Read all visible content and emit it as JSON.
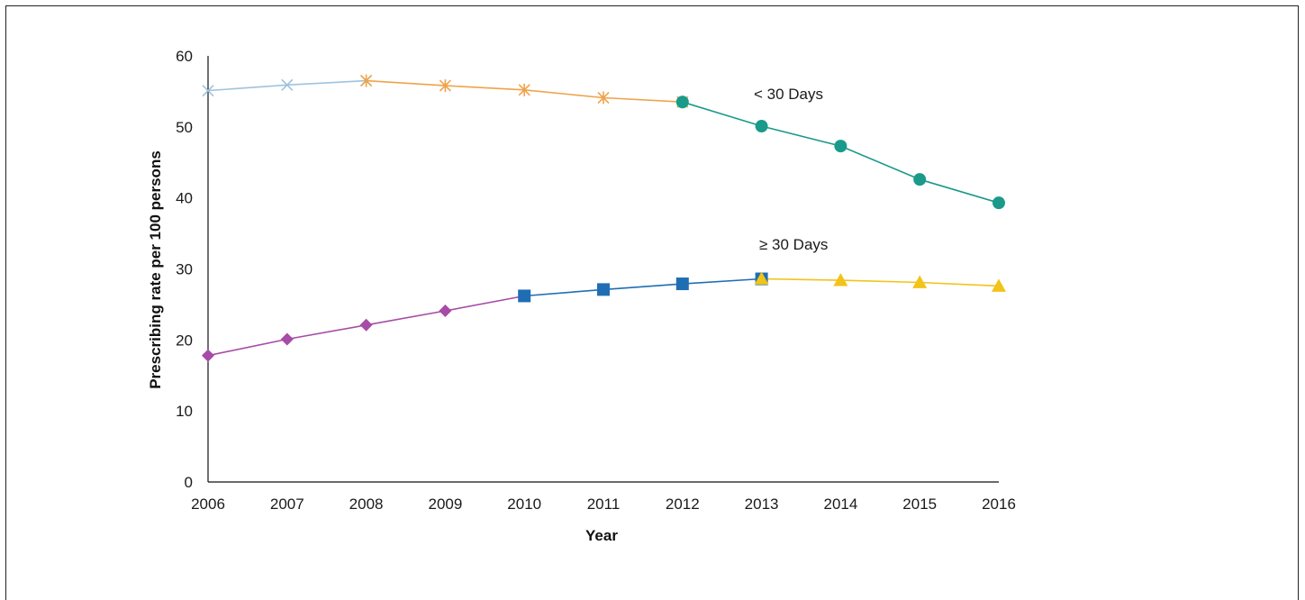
{
  "chart_data": {
    "type": "line",
    "title": "",
    "xlabel": "Year",
    "ylabel": "Prescribing rate per 100 persons",
    "x": [
      2006,
      2007,
      2008,
      2009,
      2010,
      2011,
      2012,
      2013,
      2014,
      2015,
      2016
    ],
    "xlim": [
      2006,
      2016
    ],
    "ylim": [
      0,
      60
    ],
    "yticks": [
      0,
      10,
      20,
      30,
      40,
      50,
      60
    ],
    "grid": false,
    "legend": "none",
    "annotations": [
      {
        "text": "< 30 Days",
        "series_group": "short"
      },
      {
        "text": "≥ 30 Days",
        "series_group": "long"
      }
    ],
    "series": [
      {
        "group": "short",
        "marker": "x",
        "color": "#9fc3dd",
        "x": [
          2006,
          2007,
          2008
        ],
        "y": [
          55.1,
          55.9,
          56.5
        ]
      },
      {
        "group": "short",
        "marker": "asterisk",
        "color": "#f0a24a",
        "x": [
          2008,
          2009,
          2010,
          2011,
          2012
        ],
        "y": [
          56.5,
          55.8,
          55.2,
          54.1,
          53.5
        ]
      },
      {
        "group": "short",
        "marker": "circle",
        "color": "#1a9a8a",
        "x": [
          2012,
          2013,
          2014,
          2015,
          2016
        ],
        "y": [
          53.5,
          50.1,
          47.3,
          42.6,
          39.3
        ]
      },
      {
        "group": "long",
        "marker": "diamond",
        "color": "#a64ca6",
        "x": [
          2006,
          2007,
          2008,
          2009,
          2010
        ],
        "y": [
          17.8,
          20.1,
          22.1,
          24.1,
          26.2
        ]
      },
      {
        "group": "long",
        "marker": "square",
        "color": "#1f6eb4",
        "x": [
          2010,
          2011,
          2012,
          2013
        ],
        "y": [
          26.2,
          27.1,
          27.9,
          28.6
        ]
      },
      {
        "group": "long",
        "marker": "triangle",
        "color": "#f2c318",
        "x": [
          2013,
          2014,
          2015,
          2016
        ],
        "y": [
          28.6,
          28.4,
          28.1,
          27.6
        ]
      }
    ]
  }
}
